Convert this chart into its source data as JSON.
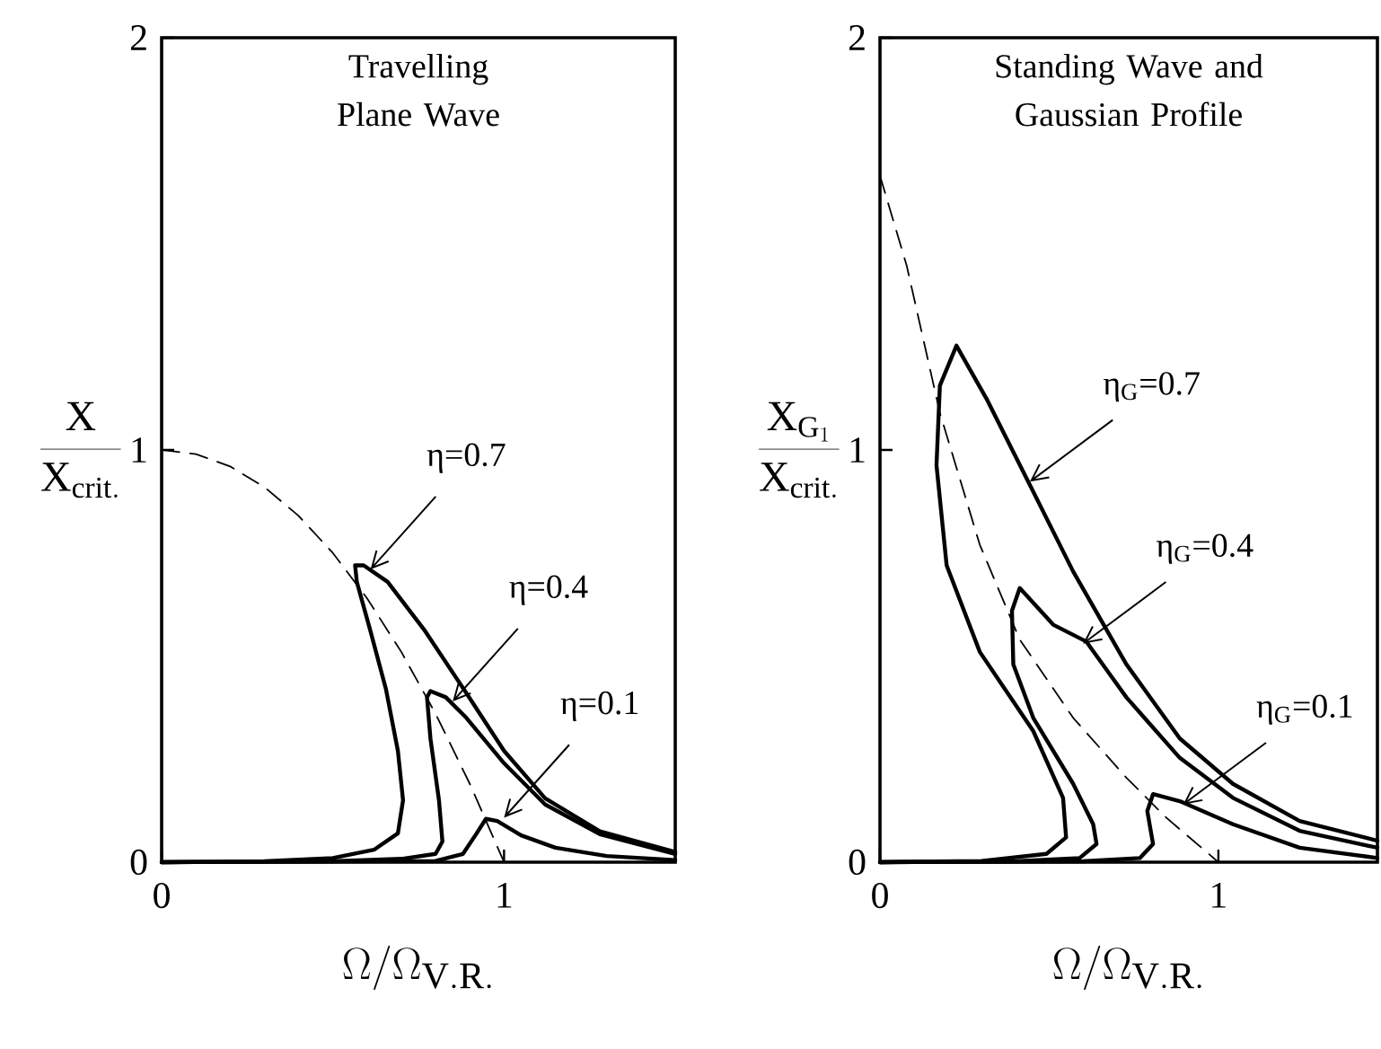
{
  "chart_data": [
    {
      "type": "line",
      "title": "Travelling Plane Wave",
      "xlabel": "\\Omega/\\Omega_{\\mathrm{V.R.}}",
      "ylabel": "\\frac{\\mathrm{X}}{\\mathrm{X}_{\\mathrm{crit.}}}",
      "xlim": [
        0,
        1.5
      ],
      "ylim": [
        0,
        2
      ],
      "xticks": [
        0,
        1
      ],
      "yticks": [
        0,
        1,
        2
      ],
      "series": [
        {
          "color": "#000000",
          "line_style": "dashed",
          "x": [
            0,
            0.1,
            0.2,
            0.3,
            0.4,
            0.5,
            0.6,
            0.7,
            0.8,
            0.9,
            1.0
          ],
          "values": [
            1,
            0.99,
            0.96,
            0.91,
            0.84,
            0.75,
            0.64,
            0.51,
            0.36,
            0.19,
            0
          ]
        },
        {
          "color": "#000000",
          "line_style": "solid",
          "x": [
            0,
            0.3,
            0.5,
            0.62,
            0.69,
            0.705,
            0.69,
            0.655,
            0.61,
            0.57,
            0.565,
            0.59,
            0.66,
            0.77,
            0.89,
            1.0,
            1.12,
            1.28,
            1.5
          ],
          "values": [
            0,
            0.002,
            0.01,
            0.03,
            0.07,
            0.15,
            0.27,
            0.42,
            0.56,
            0.68,
            0.72,
            0.72,
            0.68,
            0.56,
            0.41,
            0.27,
            0.155,
            0.075,
            0.025
          ]
        },
        {
          "color": "#000000",
          "line_style": "solid",
          "x": [
            0,
            0.5,
            0.7,
            0.8,
            0.82,
            0.81,
            0.785,
            0.775,
            0.785,
            0.83,
            0.89,
            1.0,
            1.12,
            1.28,
            1.5
          ],
          "values": [
            0,
            0.002,
            0.008,
            0.02,
            0.05,
            0.15,
            0.3,
            0.4,
            0.415,
            0.4,
            0.35,
            0.24,
            0.14,
            0.068,
            0.02
          ]
        },
        {
          "color": "#000000",
          "line_style": "solid",
          "x": [
            0,
            0.8,
            0.88,
            0.92,
            0.947,
            0.98,
            1.05,
            1.15,
            1.3,
            1.5
          ],
          "values": [
            0,
            0.003,
            0.02,
            0.07,
            0.105,
            0.1,
            0.065,
            0.035,
            0.015,
            0.005
          ]
        }
      ],
      "annotations": [
        {
          "text": "η=0.7",
          "x": 0.61,
          "y": 0.71
        },
        {
          "text": "η=0.4",
          "x": 0.85,
          "y": 0.39
        },
        {
          "text": "η=0.1",
          "x": 1.0,
          "y": 0.108
        }
      ]
    },
    {
      "type": "line",
      "title": "Standing Wave and Gaussian Profile",
      "xlabel": "\\Omega/\\Omega_{\\mathrm{V.R.}}",
      "ylabel": "\\frac{\\mathrm{X}_{\\mathrm{G}_1}}{\\mathrm{X}_{\\mathrm{crit.}}}",
      "xlim": [
        0,
        1.47
      ],
      "ylim": [
        0,
        2
      ],
      "xticks": [
        0,
        1
      ],
      "yticks": [
        0,
        1,
        2
      ],
      "series": [
        {
          "color": "#000000",
          "line_style": "dashed",
          "x": [
            0,
            0.079,
            0.177,
            0.295,
            0.413,
            0.571,
            0.728,
            0.846,
            1.0
          ],
          "values": [
            1.665,
            1.447,
            1.09,
            0.77,
            0.54,
            0.35,
            0.205,
            0.108,
            0
          ]
        },
        {
          "color": "#000000",
          "line_style": "solid",
          "x": [
            0,
            0.3,
            0.492,
            0.55,
            0.541,
            0.453,
            0.295,
            0.197,
            0.167,
            0.177,
            0.226,
            0.315,
            0.443,
            0.571,
            0.728,
            0.886,
            1.043,
            1.24,
            1.47
          ],
          "values": [
            0,
            0.003,
            0.02,
            0.06,
            0.156,
            0.318,
            0.51,
            0.72,
            0.963,
            1.156,
            1.253,
            1.124,
            0.915,
            0.705,
            0.48,
            0.3,
            0.19,
            0.1,
            0.052
          ]
        },
        {
          "color": "#000000",
          "line_style": "solid",
          "x": [
            0,
            0.4,
            0.59,
            0.64,
            0.63,
            0.571,
            0.453,
            0.394,
            0.39,
            0.413,
            0.512,
            0.61,
            0.728,
            0.886,
            1.043,
            1.24,
            1.47
          ],
          "values": [
            0,
            0.002,
            0.01,
            0.044,
            0.092,
            0.19,
            0.35,
            0.48,
            0.61,
            0.665,
            0.576,
            0.535,
            0.4,
            0.253,
            0.156,
            0.076,
            0.035
          ]
        },
        {
          "color": "#000000",
          "line_style": "solid",
          "x": [
            0,
            0.6,
            0.768,
            0.807,
            0.79,
            0.807,
            0.886,
            1.043,
            1.24,
            1.47
          ],
          "values": [
            0,
            0.002,
            0.01,
            0.044,
            0.124,
            0.165,
            0.148,
            0.092,
            0.035,
            0.01
          ]
        }
      ],
      "annotations": [
        {
          "text": "η$_{G}$=0.7",
          "x": 0.443,
          "y": 0.923
        },
        {
          "text": "η$_{G}$=0.4",
          "x": 0.6,
          "y": 0.53
        },
        {
          "text": "η$_{G}$=0.1",
          "x": 0.896,
          "y": 0.14
        }
      ]
    }
  ]
}
